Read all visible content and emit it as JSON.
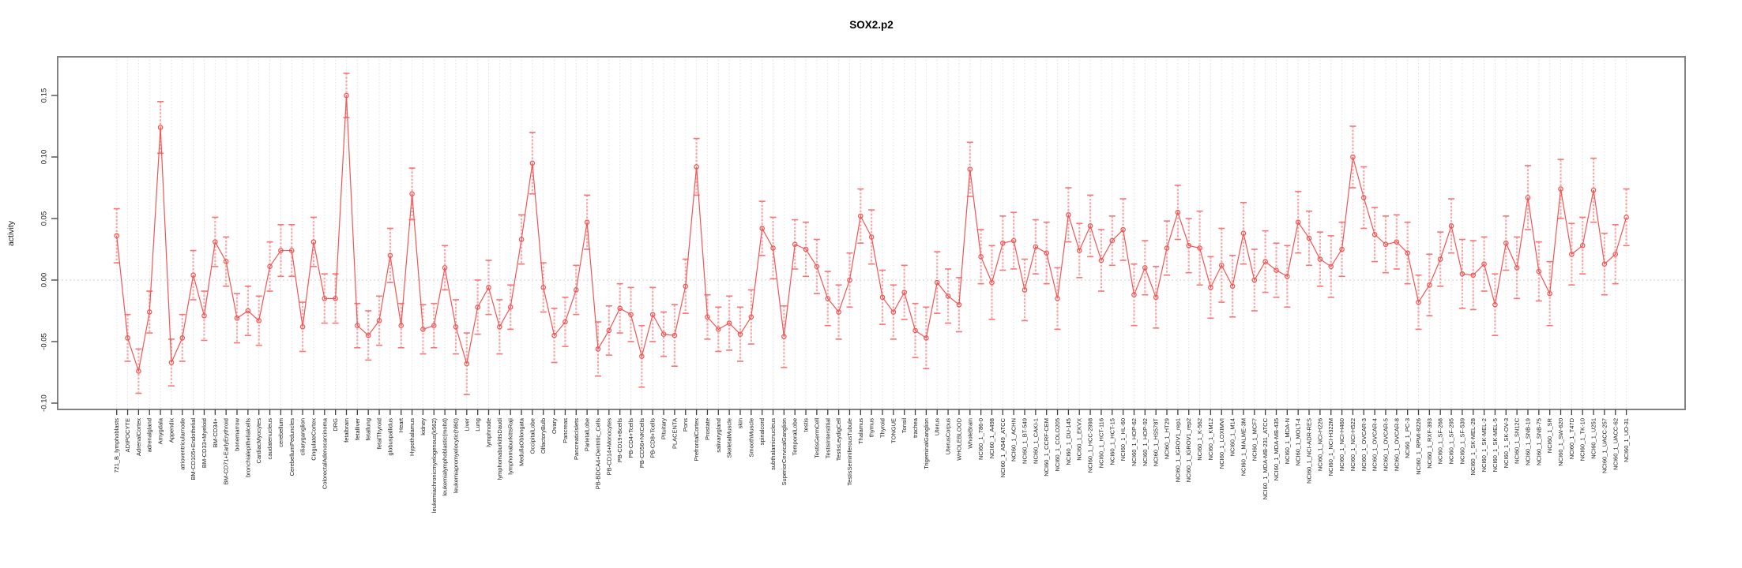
{
  "title": "SOX2.p2",
  "chart_data": {
    "type": "line",
    "title": "SOX2.p2",
    "xlabel": "",
    "ylabel": "activity",
    "ylim": [
      -0.105,
      0.185
    ],
    "yticks": [
      -0.1,
      -0.05,
      0.0,
      0.05,
      0.1,
      0.15
    ],
    "grid": "vertical dashed gridline per category; dotted horizontal line at 0",
    "legend_position": "none",
    "marker": "open-circle",
    "error_bars": true,
    "colors": {
      "series": "#f25555",
      "error_stem": "#f8a8a8",
      "error_cap": "#f47676",
      "gridline": "#e1e1e1",
      "zero_line": "#cfcfcf",
      "box": "#828282",
      "tick": "#404040",
      "text": "#1a1a1a"
    },
    "categories": [
      "721_B_lymphoblasts",
      "ADIPOCYTE",
      "AdrenalCortex",
      "adrenalgland",
      "Amygdala",
      "Appendix",
      "atrioventricularnode",
      "BM-CD105+Endothelial",
      "BM-CD33+Myeloid",
      "BM-CD34+",
      "BM-CD71+EarlyErythroid",
      "bonemarrow",
      "bronchialepithelialcells",
      "CardiacMyocytes",
      "caudatenucleus",
      "cerebellum",
      "CerebellumPeduncles",
      "ciliaryganglion",
      "CingulateCortex",
      "ColorectalAdenocarcinoma",
      "DRG",
      "fetalbrain",
      "fetalliver",
      "fetallung",
      "fetalThyroid",
      "globuspallidus",
      "Heart",
      "Hypothalamus",
      "kidney",
      "leukemiachronicmyelogenous(k562)",
      "leukemialymphoblastic(molt4)",
      "leukemiapromyelocytic(hl60)",
      "Liver",
      "Lung",
      "lymphnode",
      "lymphomaburkittsDaudi",
      "lymphomaburkittsRaji",
      "MedullaOblongata",
      "OccipitalLobe",
      "OlfactoryBulb",
      "Ovary",
      "Pancreas",
      "PancreaticIslets",
      "ParietalLobe",
      "PB-BDCA4+Dentritic_Cells",
      "PB-CD14+Monocytes",
      "PB-CD19+Bcells",
      "PB-CD4+Tcells",
      "PB-CD56+NKCells",
      "PB-CD8+Tcells",
      "Pituitary",
      "PLACENTA",
      "Pons",
      "PrefrontalCortex",
      "Prostate",
      "salivarygland",
      "SkeletalMuscle",
      "skin",
      "SmoothMuscle",
      "spinalcord",
      "subthalamicnucleus",
      "SuperiorCervicalGanglion",
      "TemporalLobe",
      "testis",
      "TestisGermCell",
      "TestisInterstitial",
      "TestisLeydigCell",
      "TestisSeminiferousTubule",
      "Thalamus",
      "thymus",
      "Thyroid",
      "TONGUE",
      "Tonsil",
      "trachea",
      "TrigeminalGanglion",
      "Uterus",
      "UterusCorpus",
      "WHOLEBLOOD",
      "WholeBrain",
      "NCI60_1_786-0",
      "NCI60_1_A498",
      "NCI60_1_A549_ATCC",
      "NCI60_1_ACHN",
      "NCI60_1_BT-549",
      "NCI60_1_CAKI-1",
      "NCI60_1_CCRF-CEM",
      "NCI60_1_COLO205",
      "NCI60_1_DU-145",
      "NCI60_1_EKVX",
      "NCI60_1_HCC-2998",
      "NCI60_1_HCT-116",
      "NCI60_1_HCT-15",
      "NCI60_1_HL-60",
      "NCI60_1_HOP-62",
      "NCI60_1_HOP-92",
      "NCI60_1_HS578T",
      "NCI60_1_HT29",
      "NCI60_1_IGROV1_rep1",
      "NCI60_1_IGROV1_rep2",
      "NCI60_1_K-562",
      "NCI60_1_KM12",
      "NCI60_1_LOXIMVI",
      "NCI60_1_M14",
      "NCI60_1_MALME-3M",
      "NCI60_1_MCF7",
      "NCI60_1_MDA-MB-231_ATCC",
      "NCI60_1_MDA-MB-435",
      "NCI60_1_MDA-N",
      "NCI60_1_MOLT-4",
      "NCI60_1_NCI-ADR-RES",
      "NCI60_1_NCI-H226",
      "NCI60_1_NCI-H322M",
      "NCI60_1_NCI-H460",
      "NCI60_1_NCI-H522",
      "NCI60_1_OVCAR-3",
      "NCI60_1_OVCAR-4",
      "NCI60_1_OVCAR-5",
      "NCI60_1_OVCAR-8",
      "NCI60_1_PC-3",
      "NCI60_1_RPMI-8226",
      "NCI60_1_RXF-393",
      "NCI60_1_SF-268",
      "NCI60_1_SF-295",
      "NCI60_1_SF-539",
      "NCI60_1_SK-MEL-28",
      "NCI60_1_SK-MEL-2",
      "NCI60_1_SK-MEL-5",
      "NCI60_1_SK-OV-3",
      "NCI60_1_SN12C",
      "NCI60_1_SNB-19",
      "NCI60_1_SNB-75",
      "NCI60_1_SR",
      "NCI60_1_SW-620",
      "NCI60_1_T47D",
      "NCI60_1_TK-10",
      "NCI60_1_U251",
      "NCI60_1_UACC-257",
      "NCI60_1_UACC-62",
      "NCI60_1_UO-31"
    ],
    "series": [
      {
        "name": "activity",
        "values": [
          0.036,
          -0.047,
          -0.074,
          -0.026,
          0.124,
          -0.067,
          -0.047,
          0.004,
          -0.029,
          0.031,
          0.015,
          -0.031,
          -0.025,
          -0.033,
          0.011,
          0.024,
          0.024,
          -0.038,
          0.031,
          -0.015,
          -0.015,
          0.15,
          -0.037,
          -0.045,
          -0.033,
          0.02,
          -0.037,
          0.07,
          -0.04,
          -0.037,
          0.01,
          -0.038,
          -0.068,
          -0.022,
          -0.006,
          -0.038,
          -0.022,
          0.033,
          0.095,
          -0.006,
          -0.045,
          -0.034,
          -0.008,
          0.047,
          -0.056,
          -0.041,
          -0.023,
          -0.028,
          -0.062,
          -0.028,
          -0.044,
          -0.045,
          -0.005,
          0.092,
          -0.03,
          -0.04,
          -0.035,
          -0.044,
          -0.03,
          0.042,
          0.026,
          -0.046,
          0.029,
          0.025,
          0.011,
          -0.015,
          -0.026,
          0.0,
          0.052,
          0.035,
          -0.014,
          -0.026,
          -0.01,
          -0.041,
          -0.047,
          -0.002,
          -0.013,
          -0.02,
          0.09,
          0.019,
          -0.002,
          0.03,
          0.032,
          -0.008,
          0.027,
          0.022,
          -0.015,
          0.053,
          0.024,
          0.044,
          0.016,
          0.032,
          0.041,
          -0.012,
          0.01,
          -0.014,
          0.026,
          0.055,
          0.028,
          0.026,
          -0.006,
          0.012,
          -0.005,
          0.038,
          0.0,
          0.015,
          0.008,
          0.003,
          0.047,
          0.034,
          0.017,
          0.011,
          0.025,
          0.1,
          0.067,
          0.037,
          0.029,
          0.031,
          0.022,
          -0.018,
          -0.004,
          0.017,
          0.044,
          0.005,
          0.004,
          0.013,
          -0.02,
          0.03,
          0.01,
          0.067,
          0.007,
          -0.011,
          0.074,
          0.021,
          0.028,
          0.073,
          0.013,
          0.021,
          0.051
        ],
        "errors": [
          0.022,
          0.019,
          0.018,
          0.017,
          0.021,
          0.019,
          0.019,
          0.02,
          0.02,
          0.02,
          0.02,
          0.02,
          0.02,
          0.02,
          0.02,
          0.021,
          0.021,
          0.02,
          0.02,
          0.02,
          0.02,
          0.018,
          0.018,
          0.02,
          0.02,
          0.022,
          0.018,
          0.021,
          0.02,
          0.018,
          0.018,
          0.022,
          0.025,
          0.022,
          0.022,
          0.022,
          0.018,
          0.02,
          0.025,
          0.02,
          0.022,
          0.02,
          0.02,
          0.022,
          0.022,
          0.02,
          0.02,
          0.022,
          0.025,
          0.022,
          0.018,
          0.025,
          0.022,
          0.023,
          0.018,
          0.018,
          0.022,
          0.022,
          0.022,
          0.022,
          0.025,
          0.025,
          0.02,
          0.022,
          0.022,
          0.022,
          0.022,
          0.022,
          0.022,
          0.022,
          0.022,
          0.022,
          0.022,
          0.022,
          0.025,
          0.025,
          0.022,
          0.022,
          0.022,
          0.022,
          0.03,
          0.022,
          0.023,
          0.025,
          0.022,
          0.025,
          0.025,
          0.022,
          0.022,
          0.025,
          0.025,
          0.02,
          0.025,
          0.025,
          0.022,
          0.025,
          0.022,
          0.022,
          0.022,
          0.03,
          0.025,
          0.03,
          0.025,
          0.025,
          0.025,
          0.025,
          0.022,
          0.025,
          0.025,
          0.022,
          0.022,
          0.025,
          0.022,
          0.025,
          0.025,
          0.022,
          0.023,
          0.022,
          0.025,
          0.022,
          0.025,
          0.022,
          0.022,
          0.028,
          0.028,
          0.022,
          0.025,
          0.022,
          0.025,
          0.026,
          0.024,
          0.026,
          0.024,
          0.025,
          0.023,
          0.026,
          0.025,
          0.024,
          0.023
        ]
      }
    ]
  }
}
